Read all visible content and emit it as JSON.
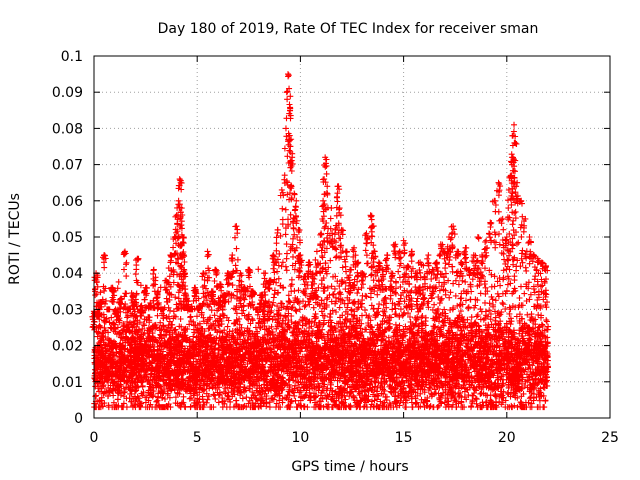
{
  "chart_data": {
    "type": "scatter",
    "title": "Day 180 of 2019, Rate Of TEC Index for receiver sman",
    "xlabel": "GPS time / hours",
    "ylabel": "ROTI / TECUs",
    "xlim": [
      0,
      25
    ],
    "ylim": [
      0,
      0.1
    ],
    "x_ticks": [
      0,
      5,
      10,
      15,
      20,
      25
    ],
    "x_tick_labels": [
      "0",
      "5",
      "10",
      "15",
      "20",
      "25"
    ],
    "y_ticks": [
      0,
      0.01,
      0.02,
      0.03,
      0.04,
      0.05,
      0.06,
      0.07,
      0.08,
      0.09,
      0.1
    ],
    "y_tick_labels": [
      "0",
      "0.01",
      "0.02",
      "0.03",
      "0.04",
      "0.05",
      "0.06",
      "0.07",
      "0.08",
      "0.09",
      "0.1"
    ],
    "grid": true,
    "marker": "plus",
    "color": "#ff0000",
    "series": [
      {
        "name": "ROTI",
        "x": [
          0.0,
          0.1,
          0.2,
          0.3,
          0.5,
          0.7,
          0.9,
          1.1,
          1.3,
          1.5,
          1.7,
          1.9,
          2.1,
          2.3,
          2.5,
          2.7,
          2.9,
          3.1,
          3.3,
          3.5,
          3.7,
          3.9,
          4.0,
          4.1,
          4.15,
          4.2,
          4.25,
          4.3,
          4.35,
          4.4,
          4.5,
          4.7,
          4.9,
          5.1,
          5.3,
          5.5,
          5.7,
          5.9,
          6.1,
          6.3,
          6.5,
          6.7,
          6.9,
          7.1,
          7.3,
          7.5,
          7.7,
          7.9,
          8.1,
          8.3,
          8.5,
          8.7,
          8.9,
          9.1,
          9.3,
          9.4,
          9.45,
          9.5,
          9.55,
          9.6,
          9.7,
          9.8,
          9.9,
          10.0,
          10.2,
          10.4,
          10.6,
          10.8,
          11.0,
          11.1,
          11.15,
          11.2,
          11.3,
          11.5,
          11.7,
          11.8,
          11.9,
          12.0,
          12.2,
          12.4,
          12.6,
          12.8,
          13.0,
          13.2,
          13.4,
          13.5,
          13.6,
          13.8,
          14.0,
          14.2,
          14.4,
          14.6,
          14.8,
          15.0,
          15.2,
          15.4,
          15.6,
          15.8,
          16.0,
          16.2,
          16.4,
          16.6,
          16.8,
          17.0,
          17.2,
          17.4,
          17.6,
          17.8,
          18.0,
          18.2,
          18.4,
          18.6,
          18.8,
          19.0,
          19.2,
          19.4,
          19.6,
          19.8,
          20.0,
          20.1,
          20.2,
          20.25,
          20.3,
          20.35,
          20.4,
          20.5,
          20.7,
          20.9,
          21.1,
          21.3,
          21.5,
          21.7,
          21.9
        ],
        "y": [
          0.025,
          0.04,
          0.028,
          0.032,
          0.045,
          0.03,
          0.036,
          0.028,
          0.033,
          0.046,
          0.03,
          0.034,
          0.044,
          0.029,
          0.036,
          0.031,
          0.041,
          0.035,
          0.03,
          0.038,
          0.045,
          0.05,
          0.056,
          0.06,
          0.066,
          0.065,
          0.058,
          0.05,
          0.045,
          0.04,
          0.033,
          0.03,
          0.036,
          0.031,
          0.04,
          0.046,
          0.035,
          0.041,
          0.037,
          0.034,
          0.04,
          0.045,
          0.053,
          0.04,
          0.036,
          0.041,
          0.035,
          0.03,
          0.034,
          0.04,
          0.038,
          0.045,
          0.052,
          0.063,
          0.08,
          0.095,
          0.091,
          0.085,
          0.077,
          0.072,
          0.062,
          0.06,
          0.052,
          0.045,
          0.039,
          0.043,
          0.04,
          0.046,
          0.051,
          0.06,
          0.066,
          0.072,
          0.064,
          0.058,
          0.052,
          0.064,
          0.058,
          0.052,
          0.046,
          0.041,
          0.047,
          0.043,
          0.04,
          0.051,
          0.056,
          0.053,
          0.046,
          0.043,
          0.041,
          0.045,
          0.04,
          0.048,
          0.046,
          0.049,
          0.042,
          0.046,
          0.04,
          0.043,
          0.039,
          0.045,
          0.041,
          0.043,
          0.048,
          0.046,
          0.05,
          0.053,
          0.046,
          0.043,
          0.047,
          0.041,
          0.045,
          0.05,
          0.045,
          0.049,
          0.054,
          0.06,
          0.065,
          0.055,
          0.05,
          0.063,
          0.067,
          0.072,
          0.078,
          0.081,
          0.076,
          0.065,
          0.06,
          0.055,
          0.05,
          0.045,
          0.044,
          0.043,
          0.042
        ]
      }
    ],
    "bulk_band": {
      "description": "dense band of points, continuous from 0 to ~22 h",
      "x_range": [
        0,
        22
      ],
      "y_typical_range": [
        0.005,
        0.035
      ],
      "y_median": 0.015
    }
  }
}
